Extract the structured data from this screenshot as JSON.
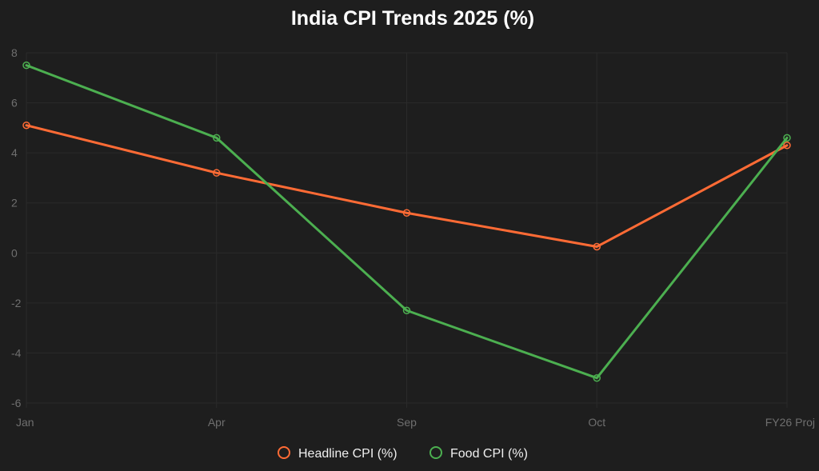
{
  "chart_data": {
    "type": "line",
    "title": "India CPI Trends 2025 (%)",
    "categories": [
      "Jan",
      "Apr",
      "Sep",
      "Oct",
      "FY26 Proj"
    ],
    "xlabel": "",
    "ylabel": "",
    "ylim": [
      -6,
      8
    ],
    "yticks": [
      8,
      6,
      4,
      2,
      0,
      -2,
      -4,
      -6
    ],
    "ytick_labels": [
      "8",
      "6",
      "4",
      "2",
      "0",
      "-2",
      "-4",
      "-6"
    ],
    "grid": true,
    "legend_position": "bottom",
    "series": [
      {
        "name": "Headline CPI (%)",
        "color": "#ff6b35",
        "values": [
          5.1,
          3.2,
          1.6,
          0.25,
          4.3
        ]
      },
      {
        "name": "Food CPI (%)",
        "color": "#4caf50",
        "values": [
          7.5,
          4.6,
          -2.3,
          -5.0,
          4.6
        ]
      }
    ]
  }
}
